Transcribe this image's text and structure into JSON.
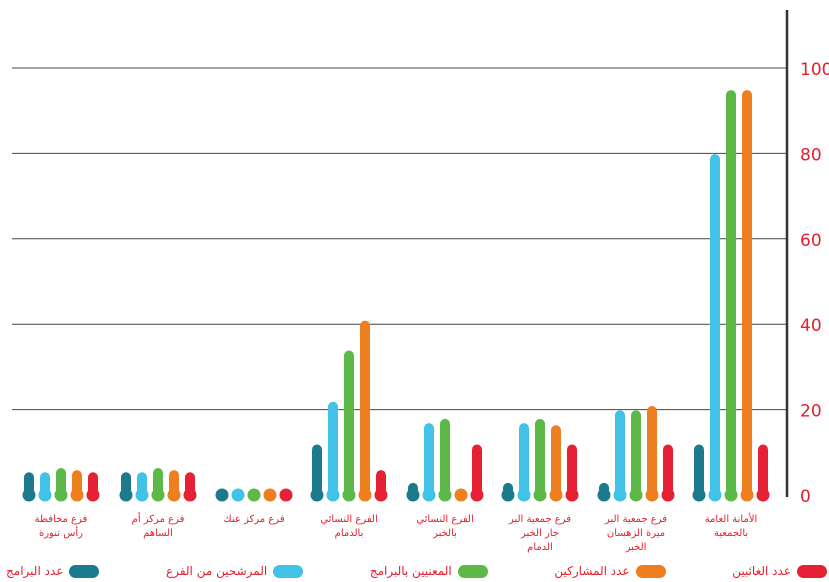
{
  "chart_data": {
    "type": "bar",
    "orientation": "vertical",
    "y_axis_side": "right",
    "ylim": [
      0,
      110
    ],
    "yticks": [
      0,
      20,
      40,
      60,
      80,
      100
    ],
    "grid": true,
    "legend_position": "bottom",
    "categories": [
      [
        "الأمانة العامة",
        "بالجمعية"
      ],
      [
        "فرع جمعية البر",
        "ميرة الزهسان",
        "الخبر"
      ],
      [
        "فرع جمعية البر",
        "جار الخبر",
        "الدمام"
      ],
      [
        "الفرع النسائي",
        "بالخبر"
      ],
      [
        "الفرع النسائي",
        "بالدمام"
      ],
      [
        "فرع مركز عنك"
      ],
      [
        "فرع مركز أم",
        "الساهم"
      ],
      [
        "فرع محافظة",
        "رأس تنورة"
      ]
    ],
    "series": [
      {
        "name": "عدد البرامج",
        "color": "#1b7a8c",
        "values": [
          13,
          4,
          4,
          4,
          13,
          1,
          6.5,
          6.5
        ]
      },
      {
        "name": "المرشحين من الفرع",
        "color": "#43c2e8",
        "values": [
          81,
          21,
          18,
          18,
          23,
          1,
          6.5,
          6.5
        ]
      },
      {
        "name": "المعنيين بالبرامج",
        "color": "#5cb947",
        "values": [
          96,
          21,
          19,
          19,
          35,
          1,
          7.5,
          7.5
        ]
      },
      {
        "name": "عدد المشاركين",
        "color": "#ee7f1e",
        "values": [
          96,
          22,
          17.5,
          1,
          42,
          1,
          7,
          7
        ]
      },
      {
        "name": "عدد الغائبين",
        "color": "#e62035",
        "values": [
          13,
          13,
          13,
          13,
          7,
          1,
          6.5,
          6.5
        ]
      }
    ],
    "colors": {
      "tick_label": "#e31e2d",
      "category_label": "#e31e2d",
      "legend_label": "#e31e2d",
      "axis": "#333333",
      "grid": "#444444"
    }
  }
}
